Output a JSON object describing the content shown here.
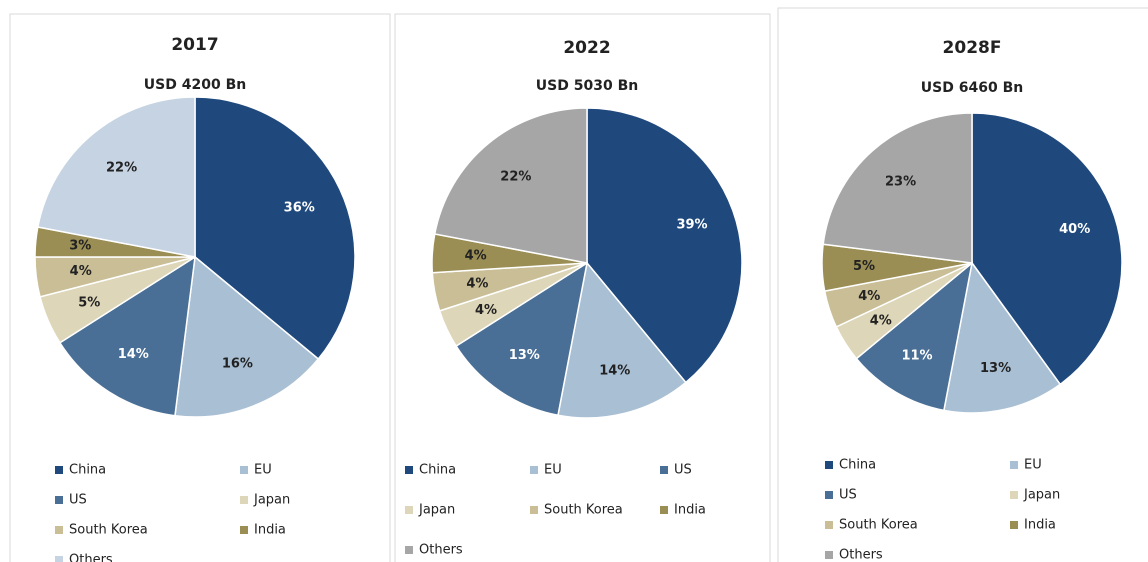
{
  "chart_data": [
    {
      "type": "pie",
      "title": "2017",
      "subtitle": "USD 4200 Bn",
      "categories": [
        "China",
        "EU",
        "US",
        "Japan",
        "South Korea",
        "India",
        "Others"
      ],
      "values": [
        36,
        16,
        14,
        5,
        4,
        3,
        22
      ],
      "value_labels": [
        "36%",
        "16%",
        "14%",
        "5%",
        "4%",
        "3%",
        "22%"
      ],
      "colors": [
        "#1f497d",
        "#a9bfd4",
        "#4a6f96",
        "#ddd6b8",
        "#c9be96",
        "#9b8e55",
        "#c5d3e2"
      ]
    },
    {
      "type": "pie",
      "title": "2022",
      "subtitle": "USD 5030 Bn",
      "categories": [
        "China",
        "EU",
        "US",
        "Japan",
        "South Korea",
        "India",
        "Others"
      ],
      "values": [
        39,
        14,
        13,
        4,
        4,
        4,
        22
      ],
      "value_labels": [
        "39%",
        "14%",
        "13%",
        "4%",
        "4%",
        "4%",
        "22%"
      ],
      "colors": [
        "#1f497d",
        "#a9bfd4",
        "#4a6f96",
        "#ddd6b8",
        "#c9be96",
        "#9b8e55",
        "#a6a6a6"
      ]
    },
    {
      "type": "pie",
      "title": "2028F",
      "subtitle": "USD 6460 Bn",
      "categories": [
        "China",
        "EU",
        "US",
        "Japan",
        "South Korea",
        "India",
        "Others"
      ],
      "values": [
        40,
        13,
        11,
        4,
        4,
        5,
        23
      ],
      "value_labels": [
        "40%",
        "13%",
        "11%",
        "4%",
        "4%",
        "5%",
        "23%"
      ],
      "colors": [
        "#1f497d",
        "#a9bfd4",
        "#4a6f96",
        "#ddd6b8",
        "#c9be96",
        "#9b8e55",
        "#a6a6a6"
      ]
    }
  ]
}
